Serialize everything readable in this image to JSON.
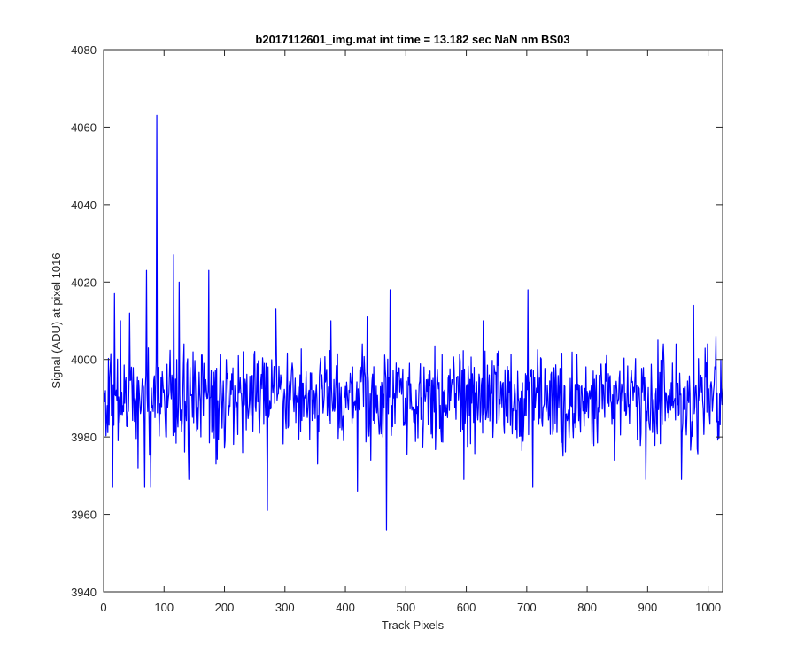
{
  "chart_data": {
    "type": "line",
    "title": "b2017112601_img.mat int time = 13.182 sec  NaN nm BS03",
    "xlabel": "Track Pixels",
    "ylabel": "Signal (ADU) at pixel 1016",
    "xlim": [
      0,
      1024
    ],
    "ylim": [
      3940,
      4080
    ],
    "xticks": [
      0,
      100,
      200,
      300,
      400,
      500,
      600,
      700,
      800,
      900,
      1000
    ],
    "yticks": [
      3940,
      3960,
      3980,
      4000,
      4020,
      4040,
      4060,
      4080
    ],
    "grid": false,
    "line_color": "#0000ff",
    "series": [
      {
        "n_points": 1024,
        "baseline": 3990,
        "noise_range": [
          3976,
          4002
        ],
        "features": [
          {
            "x": 14,
            "y": 3967
          },
          {
            "x": 17,
            "y": 4017
          },
          {
            "x": 27,
            "y": 4010
          },
          {
            "x": 42,
            "y": 4012
          },
          {
            "x": 56,
            "y": 3972
          },
          {
            "x": 67,
            "y": 3967
          },
          {
            "x": 70,
            "y": 4023
          },
          {
            "x": 77,
            "y": 3967
          },
          {
            "x": 87,
            "y": 4063
          },
          {
            "x": 102,
            "y": 3980
          },
          {
            "x": 115,
            "y": 4027
          },
          {
            "x": 124,
            "y": 4020
          },
          {
            "x": 132,
            "y": 4004
          },
          {
            "x": 140,
            "y": 3969
          },
          {
            "x": 173,
            "y": 4023
          },
          {
            "x": 185,
            "y": 3973
          },
          {
            "x": 256,
            "y": 3985
          },
          {
            "x": 270,
            "y": 3961
          },
          {
            "x": 284,
            "y": 4013
          },
          {
            "x": 353,
            "y": 3973
          },
          {
            "x": 375,
            "y": 4010
          },
          {
            "x": 419,
            "y": 3966
          },
          {
            "x": 435,
            "y": 4011
          },
          {
            "x": 467,
            "y": 3956
          },
          {
            "x": 470,
            "y": 3986
          },
          {
            "x": 473,
            "y": 4018
          },
          {
            "x": 595,
            "y": 3969
          },
          {
            "x": 627,
            "y": 4010
          },
          {
            "x": 701,
            "y": 4018
          },
          {
            "x": 709,
            "y": 3967
          },
          {
            "x": 896,
            "y": 3969
          },
          {
            "x": 916,
            "y": 4005
          },
          {
            "x": 955,
            "y": 3969
          },
          {
            "x": 975,
            "y": 4014
          },
          {
            "x": 1012,
            "y": 4006
          },
          {
            "x": 1016,
            "y": 3984
          },
          {
            "x": 1020,
            "y": 4000
          }
        ]
      }
    ]
  }
}
